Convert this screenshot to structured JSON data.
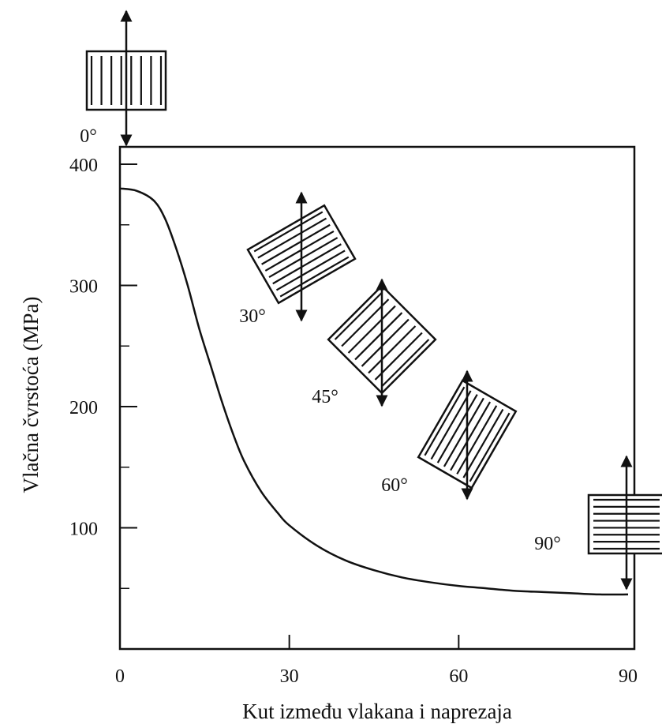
{
  "chart_data": {
    "type": "line",
    "title": "",
    "xlabel": "Kut između vlakana i naprezaja",
    "ylabel": "Vlačna čvrstoća (MPa)",
    "xlim": [
      0,
      90
    ],
    "ylim": [
      0,
      400
    ],
    "x_ticks": [
      0,
      30,
      60,
      90
    ],
    "x_tick_labels": [
      "0",
      "30",
      "60",
      "90"
    ],
    "y_ticks": [
      100,
      200,
      300,
      400
    ],
    "y_tick_labels": [
      "100",
      "200",
      "300",
      "400"
    ],
    "grid": false,
    "series": [
      {
        "x": [
          0,
          3,
          6,
          8,
          10,
          12,
          14,
          16,
          18,
          20,
          22,
          25,
          28,
          30,
          35,
          40,
          45,
          50,
          55,
          60,
          65,
          70,
          75,
          80,
          85,
          90
        ],
        "y": [
          380,
          378,
          370,
          355,
          330,
          300,
          265,
          235,
          205,
          178,
          155,
          130,
          112,
          102,
          85,
          73,
          65,
          59,
          55,
          52,
          50,
          48,
          47,
          46,
          45,
          45
        ]
      }
    ],
    "annotations": [
      {
        "label": "0°",
        "angle": 0,
        "at_x": 0
      },
      {
        "label": "30°",
        "angle": 30,
        "at_x": 30
      },
      {
        "label": "45°",
        "angle": 45,
        "at_x": 45
      },
      {
        "label": "60°",
        "angle": 60,
        "at_x": 60
      },
      {
        "label": "90°",
        "angle": 90,
        "at_x": 90
      }
    ]
  }
}
